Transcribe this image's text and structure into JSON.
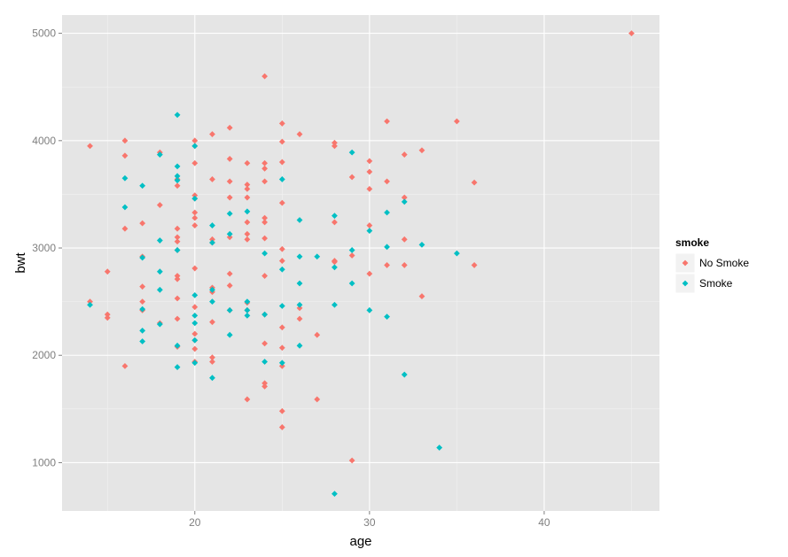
{
  "chart_data": {
    "type": "scatter",
    "xlabel": "age",
    "ylabel": "bwt",
    "xlim": [
      12.4,
      46.6
    ],
    "ylim": [
      550,
      5170
    ],
    "x_ticks": [
      20,
      30,
      40
    ],
    "y_ticks": [
      1000,
      2000,
      3000,
      4000,
      5000
    ],
    "grid": true,
    "legend": {
      "title": "smoke",
      "position": "right"
    },
    "series": [
      {
        "name": "No Smoke",
        "color": "#F8766D",
        "points": [
          [
            14,
            3950
          ],
          [
            14,
            2500
          ],
          [
            15,
            2780
          ],
          [
            15,
            2380
          ],
          [
            15,
            2350
          ],
          [
            16,
            4000
          ],
          [
            16,
            3860
          ],
          [
            16,
            3180
          ],
          [
            16,
            1900
          ],
          [
            17,
            3230
          ],
          [
            17,
            2920
          ],
          [
            17,
            2640
          ],
          [
            17,
            2500
          ],
          [
            17,
            2420
          ],
          [
            18,
            3890
          ],
          [
            18,
            3400
          ],
          [
            18,
            2300
          ],
          [
            19,
            3640
          ],
          [
            19,
            3580
          ],
          [
            19,
            3180
          ],
          [
            19,
            3100
          ],
          [
            19,
            3060
          ],
          [
            19,
            2980
          ],
          [
            19,
            2740
          ],
          [
            19,
            2710
          ],
          [
            19,
            2530
          ],
          [
            19,
            2340
          ],
          [
            19,
            2080
          ],
          [
            20,
            4000
          ],
          [
            20,
            3950
          ],
          [
            20,
            3790
          ],
          [
            20,
            3490
          ],
          [
            20,
            3460
          ],
          [
            20,
            3330
          ],
          [
            20,
            3280
          ],
          [
            20,
            3210
          ],
          [
            20,
            2810
          ],
          [
            20,
            2450
          ],
          [
            20,
            2200
          ],
          [
            20,
            2140
          ],
          [
            20,
            2060
          ],
          [
            20,
            1940
          ],
          [
            21,
            4060
          ],
          [
            21,
            3640
          ],
          [
            21,
            3080
          ],
          [
            21,
            3050
          ],
          [
            21,
            2630
          ],
          [
            21,
            2590
          ],
          [
            21,
            2310
          ],
          [
            21,
            1980
          ],
          [
            21,
            1940
          ],
          [
            22,
            4120
          ],
          [
            22,
            3830
          ],
          [
            22,
            3620
          ],
          [
            22,
            3470
          ],
          [
            22,
            3100
          ],
          [
            22,
            2760
          ],
          [
            22,
            2650
          ],
          [
            22,
            2420
          ],
          [
            23,
            3790
          ],
          [
            23,
            3590
          ],
          [
            23,
            3550
          ],
          [
            23,
            3470
          ],
          [
            23,
            3240
          ],
          [
            23,
            3130
          ],
          [
            23,
            3080
          ],
          [
            23,
            2490
          ],
          [
            23,
            2420
          ],
          [
            23,
            1590
          ],
          [
            24,
            4600
          ],
          [
            24,
            3790
          ],
          [
            24,
            3740
          ],
          [
            24,
            3620
          ],
          [
            24,
            3280
          ],
          [
            24,
            3240
          ],
          [
            24,
            3090
          ],
          [
            24,
            2740
          ],
          [
            24,
            2380
          ],
          [
            24,
            2110
          ],
          [
            24,
            1740
          ],
          [
            24,
            1710
          ],
          [
            25,
            4160
          ],
          [
            25,
            3990
          ],
          [
            25,
            3800
          ],
          [
            25,
            3420
          ],
          [
            25,
            2990
          ],
          [
            25,
            2880
          ],
          [
            25,
            2260
          ],
          [
            25,
            2070
          ],
          [
            25,
            1900
          ],
          [
            25,
            1480
          ],
          [
            25,
            1330
          ],
          [
            26,
            4060
          ],
          [
            26,
            2440
          ],
          [
            26,
            2340
          ],
          [
            27,
            2190
          ],
          [
            27,
            1590
          ],
          [
            28,
            3980
          ],
          [
            28,
            3950
          ],
          [
            28,
            3240
          ],
          [
            28,
            2880
          ],
          [
            28,
            2870
          ],
          [
            29,
            3660
          ],
          [
            29,
            2930
          ],
          [
            29,
            1020
          ],
          [
            30,
            3810
          ],
          [
            30,
            3710
          ],
          [
            30,
            3550
          ],
          [
            30,
            3210
          ],
          [
            30,
            2760
          ],
          [
            31,
            4180
          ],
          [
            31,
            3620
          ],
          [
            31,
            2840
          ],
          [
            32,
            3870
          ],
          [
            32,
            3470
          ],
          [
            32,
            3080
          ],
          [
            32,
            2840
          ],
          [
            33,
            3910
          ],
          [
            33,
            2550
          ],
          [
            35,
            4180
          ],
          [
            36,
            3610
          ],
          [
            36,
            2840
          ],
          [
            45,
            5000
          ]
        ]
      },
      {
        "name": "Smoke",
        "color": "#00BFC4",
        "points": [
          [
            14,
            2470
          ],
          [
            16,
            3650
          ],
          [
            16,
            3380
          ],
          [
            17,
            3580
          ],
          [
            17,
            2910
          ],
          [
            17,
            2430
          ],
          [
            17,
            2230
          ],
          [
            17,
            2130
          ],
          [
            18,
            3870
          ],
          [
            18,
            3070
          ],
          [
            18,
            2780
          ],
          [
            18,
            2610
          ],
          [
            18,
            2290
          ],
          [
            19,
            4240
          ],
          [
            19,
            3760
          ],
          [
            19,
            3670
          ],
          [
            19,
            3630
          ],
          [
            19,
            2980
          ],
          [
            19,
            2090
          ],
          [
            19,
            1890
          ],
          [
            20,
            3950
          ],
          [
            20,
            3460
          ],
          [
            20,
            2560
          ],
          [
            20,
            2370
          ],
          [
            20,
            2300
          ],
          [
            20,
            2140
          ],
          [
            20,
            1930
          ],
          [
            21,
            3210
          ],
          [
            21,
            3050
          ],
          [
            21,
            2610
          ],
          [
            21,
            2500
          ],
          [
            21,
            1790
          ],
          [
            22,
            3320
          ],
          [
            22,
            3130
          ],
          [
            22,
            2420
          ],
          [
            22,
            2190
          ],
          [
            23,
            3340
          ],
          [
            23,
            2500
          ],
          [
            23,
            2420
          ],
          [
            23,
            2370
          ],
          [
            24,
            2950
          ],
          [
            24,
            2380
          ],
          [
            24,
            1940
          ],
          [
            25,
            3640
          ],
          [
            25,
            2800
          ],
          [
            25,
            2460
          ],
          [
            25,
            1930
          ],
          [
            26,
            3260
          ],
          [
            26,
            2920
          ],
          [
            26,
            2670
          ],
          [
            26,
            2470
          ],
          [
            26,
            2090
          ],
          [
            27,
            2920
          ],
          [
            28,
            3300
          ],
          [
            28,
            2820
          ],
          [
            28,
            2470
          ],
          [
            28,
            710
          ],
          [
            29,
            3890
          ],
          [
            29,
            2980
          ],
          [
            29,
            2670
          ],
          [
            30,
            3160
          ],
          [
            30,
            2420
          ],
          [
            31,
            3330
          ],
          [
            31,
            3010
          ],
          [
            31,
            2360
          ],
          [
            32,
            3430
          ],
          [
            32,
            1820
          ],
          [
            33,
            3030
          ],
          [
            34,
            1140
          ],
          [
            35,
            2950
          ]
        ]
      }
    ]
  }
}
